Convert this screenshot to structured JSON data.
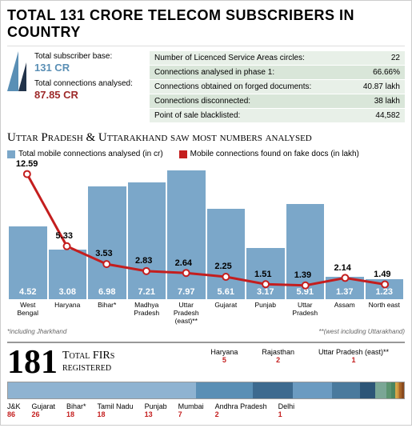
{
  "title": "TOTAL 131 CRORE TELECOM SUBSCRIBERS IN COUNTRY",
  "leftStats": {
    "totalBase": {
      "label": "Total subscriber base:",
      "value": "131 CR",
      "color": "#5a8fb5"
    },
    "analysed": {
      "label": "Total connections analysed:",
      "value": "87.85 CR",
      "color": "#9e2a2a"
    }
  },
  "statsTable": {
    "bgOdd": "#d9e6d9",
    "bgEven": "#e8f0e8",
    "rows": [
      {
        "label": "Number of Licenced Service Areas circles:",
        "value": "22"
      },
      {
        "label": "Connections analysed in phase 1:",
        "value": "66.66%"
      },
      {
        "label": "Connections obtained on forged documents:",
        "value": "40.87 lakh"
      },
      {
        "label": "Connections disconnected:",
        "value": "38 lakh"
      },
      {
        "label": "Point of sale blacklisted:",
        "value": "44,582"
      }
    ]
  },
  "subtitle": "Uttar Pradesh & Uttarakhand saw most numbers analysed",
  "chart": {
    "barColor": "#7ba7c9",
    "lineColor": "#c41e1e",
    "legend": {
      "bars": "Total mobile connections analysed (in cr)",
      "line": "Mobile connections found on fake docs (in lakh)"
    },
    "maxBar": 8.0,
    "categories": [
      "West Bengal",
      "Haryana",
      "Bihar*",
      "Madhya Pradesh",
      "Uttar Pradesh (east)**",
      "Gujarat",
      "Punjab",
      "Uttar Pradesh",
      "Assam",
      "North east"
    ],
    "bars": [
      4.52,
      3.08,
      6.98,
      7.21,
      7.97,
      5.61,
      3.17,
      5.91,
      1.37,
      1.23
    ],
    "line": [
      12.59,
      5.33,
      3.53,
      2.83,
      2.64,
      2.25,
      1.51,
      1.39,
      2.14,
      1.49
    ]
  },
  "footnotes": {
    "left": "*including Jharkhand",
    "right": "**(west including Uttarakhand)"
  },
  "fir": {
    "total": "181",
    "label1": "Total FIRs",
    "label2": "registered",
    "top": [
      {
        "name": "Haryana",
        "value": "5",
        "color": "#c41e1e"
      },
      {
        "name": "Rajasthan",
        "value": "2",
        "color": "#c41e1e"
      },
      {
        "name": "Uttar Pradesh (east)**",
        "value": "1",
        "color": "#c41e1e"
      }
    ],
    "segments": [
      {
        "w": 86,
        "color": "#8fb3d1"
      },
      {
        "w": 26,
        "color": "#5a8fb5"
      },
      {
        "w": 18,
        "color": "#3d6a8f"
      },
      {
        "w": 18,
        "color": "#6b9bc1"
      },
      {
        "w": 13,
        "color": "#4a7a9d"
      },
      {
        "w": 7,
        "color": "#2d5577"
      },
      {
        "w": 5,
        "color": "#7aa695"
      },
      {
        "w": 2,
        "color": "#5c9470"
      },
      {
        "w": 2,
        "color": "#4a8560"
      },
      {
        "w": 1,
        "color": "#d4a548"
      },
      {
        "w": 1,
        "color": "#c78a3a"
      },
      {
        "w": 1,
        "color": "#a66428"
      },
      {
        "w": 1,
        "color": "#8a4a1e"
      }
    ],
    "bottom": [
      {
        "name": "J&K",
        "value": "86"
      },
      {
        "name": "Gujarat",
        "value": "26"
      },
      {
        "name": "Bihar*",
        "value": "18"
      },
      {
        "name": "Tamil Nadu",
        "value": "18"
      },
      {
        "name": "Punjab",
        "value": "13"
      },
      {
        "name": "Mumbai",
        "value": "7"
      },
      {
        "name": "Andhra Pradesh",
        "value": "2"
      },
      {
        "name": "Delhi",
        "value": "1"
      }
    ],
    "valColor": "#c41e1e"
  }
}
